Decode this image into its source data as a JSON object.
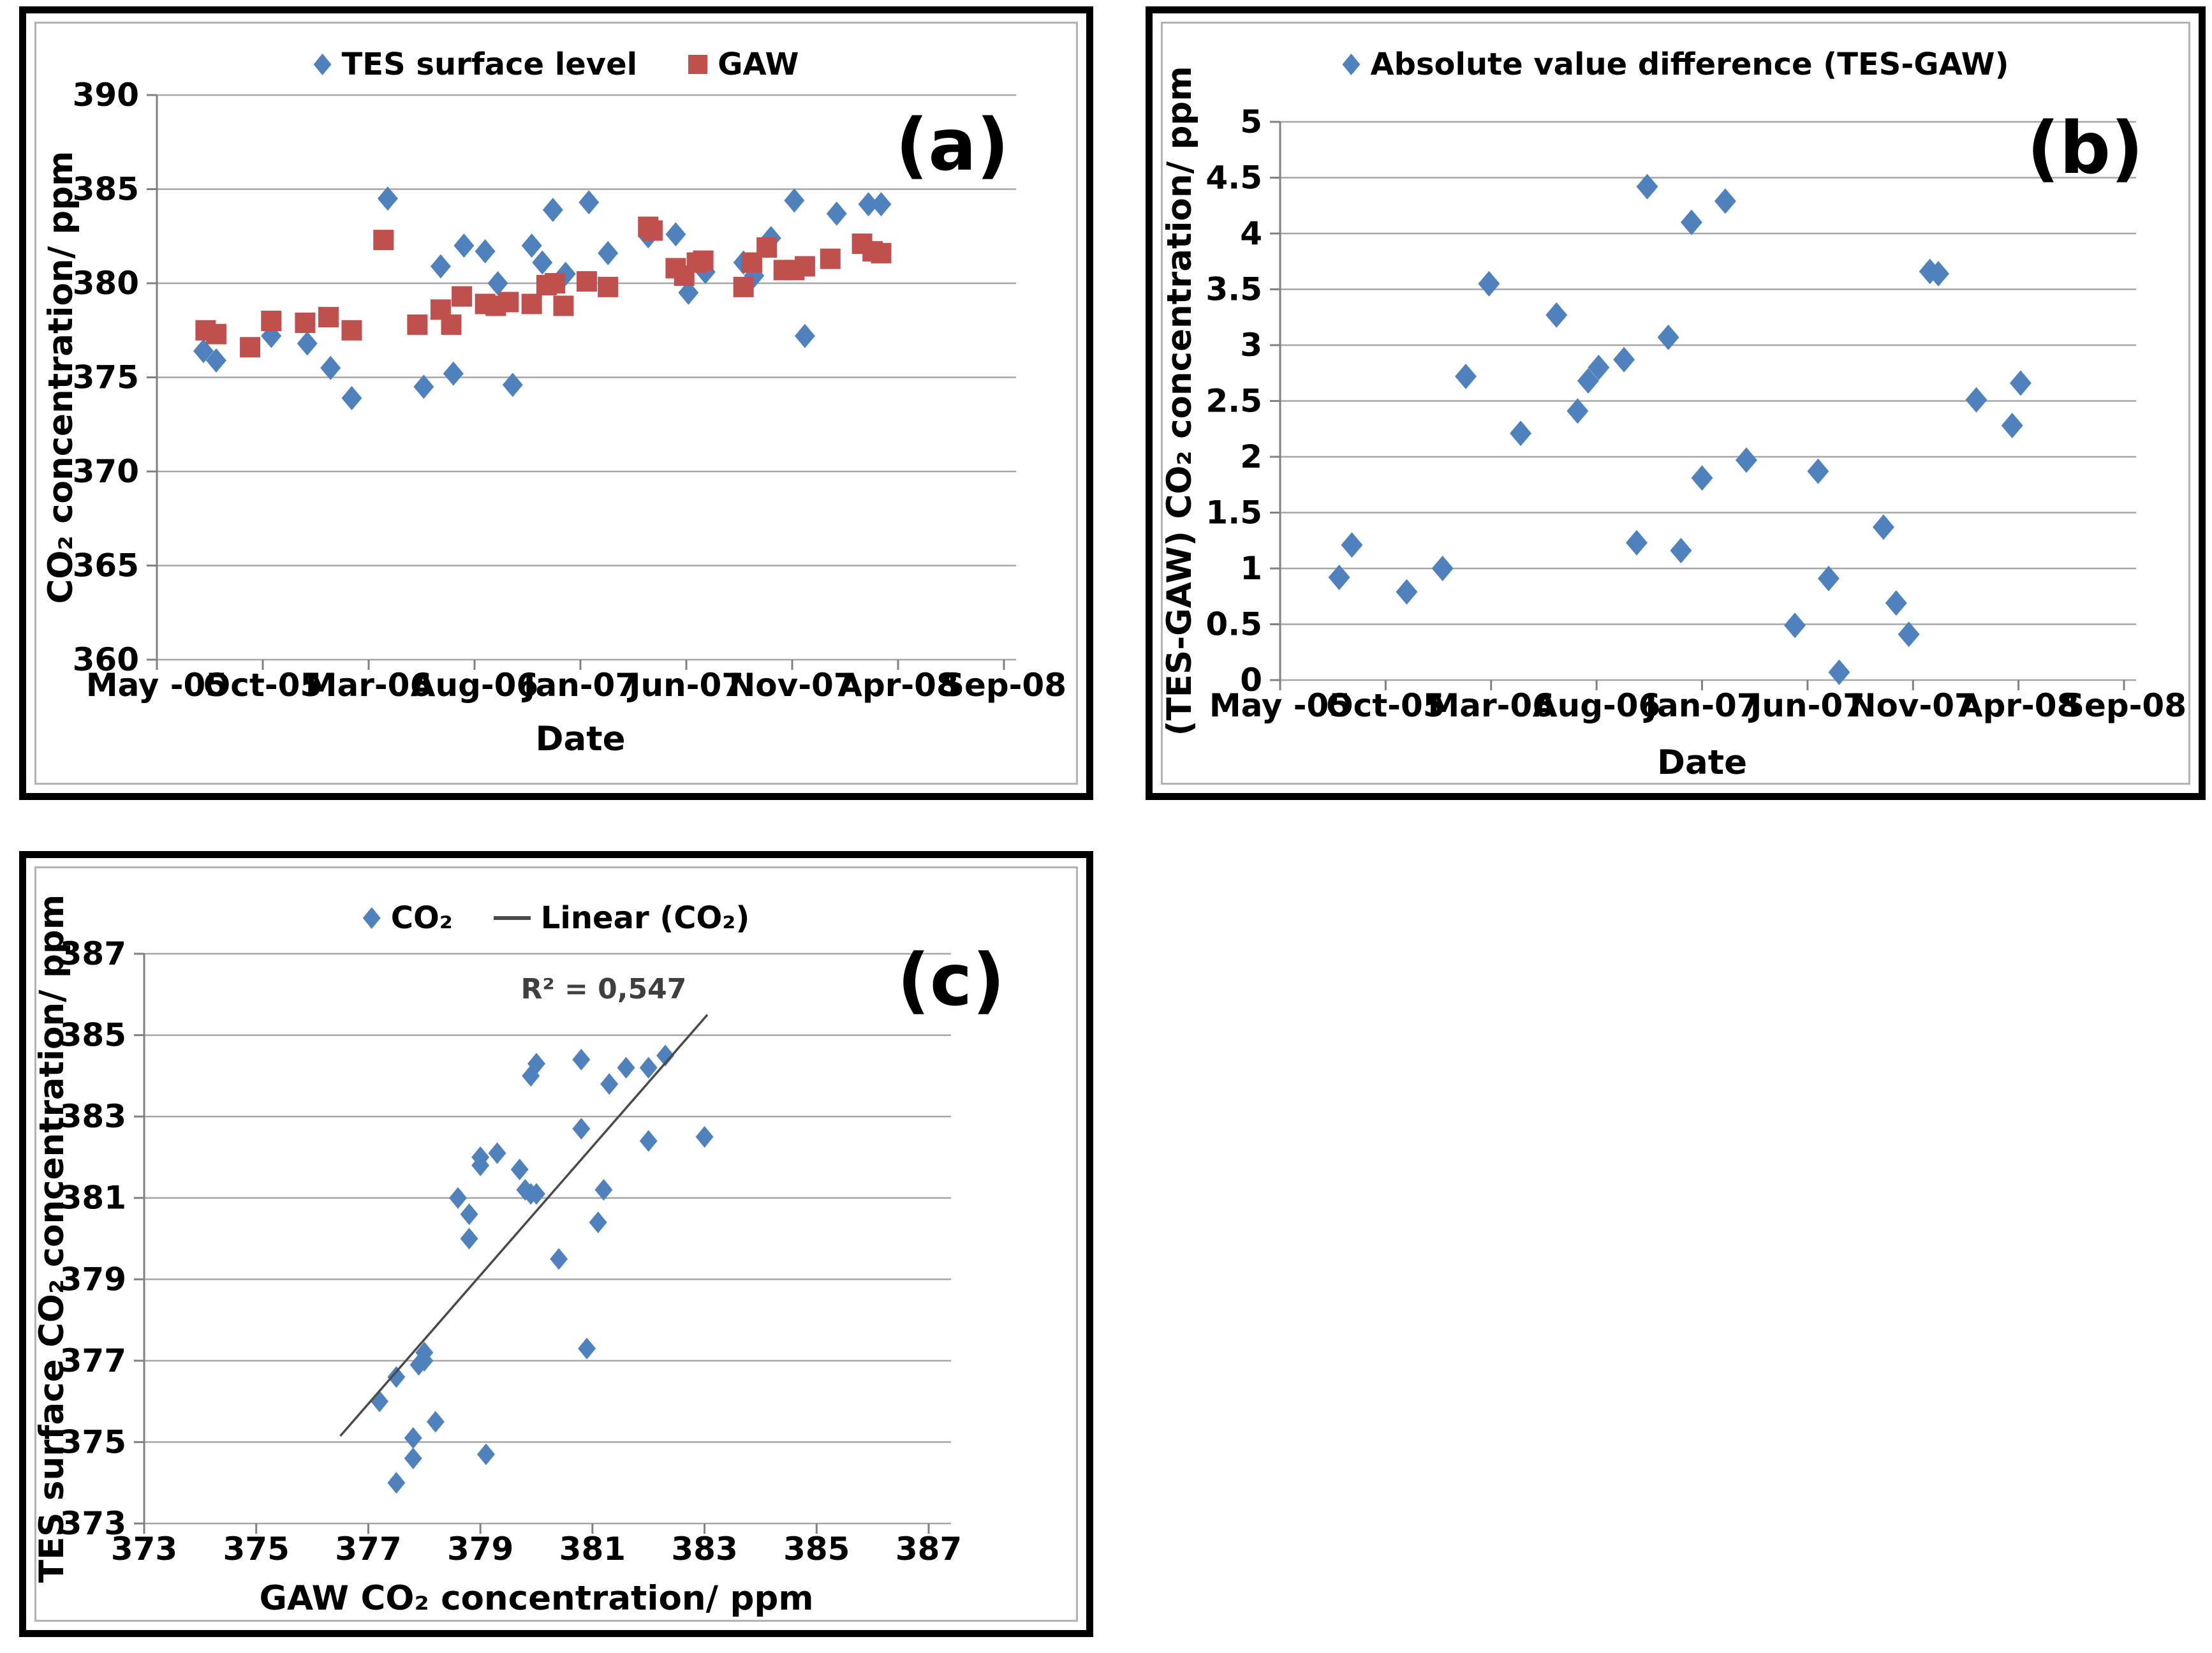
{
  "figure": {
    "background": "#ffffff",
    "accent_blue": "#4f81bd",
    "accent_red": "#c0504d",
    "gridline_color": "#a6a6a6",
    "axis_color": "#808080"
  },
  "chart_data": [
    {
      "id": "a",
      "type": "scatter",
      "panel_label": "(a)",
      "xlabel": "Date",
      "ylabel": "CO₂ concentration/ ppm",
      "x_unit": "months since May-05",
      "xlim": [
        0,
        40
      ],
      "ylim": [
        360,
        390
      ],
      "grid": "horizontal",
      "legend_position": "top-center",
      "xticks": {
        "values": [
          0,
          5,
          10,
          15,
          20,
          25,
          30,
          35,
          40
        ],
        "labels": [
          "May -05",
          "Oct-05",
          "Mar-06",
          "Aug-06",
          "Jan-07",
          "Jun-07",
          "Nov-07",
          "Apr-08",
          "Sep-08"
        ]
      },
      "yticks": {
        "values": [
          360,
          365,
          370,
          375,
          380,
          385,
          390
        ],
        "labels": [
          "360",
          "365",
          "370",
          "375",
          "380",
          "385",
          "390"
        ]
      },
      "series": [
        {
          "name": "TES surface level",
          "marker": "diamond",
          "color": "#4f81bd",
          "points": [
            [
              2.2,
              376.4
            ],
            [
              2.8,
              375.9
            ],
            [
              5.4,
              377.2
            ],
            [
              7.1,
              376.8
            ],
            [
              8.2,
              375.5
            ],
            [
              9.2,
              373.9
            ],
            [
              10.9,
              384.5
            ],
            [
              12.6,
              374.5
            ],
            [
              13.4,
              380.9
            ],
            [
              14.0,
              375.2
            ],
            [
              14.5,
              382.0
            ],
            [
              15.5,
              381.7
            ],
            [
              16.1,
              380.0
            ],
            [
              16.8,
              374.6
            ],
            [
              17.7,
              382.0
            ],
            [
              18.2,
              381.1
            ],
            [
              18.7,
              383.9
            ],
            [
              19.3,
              380.5
            ],
            [
              20.4,
              384.3
            ],
            [
              21.3,
              381.6
            ],
            [
              23.2,
              382.5
            ],
            [
              24.5,
              382.6
            ],
            [
              25.1,
              379.5
            ],
            [
              25.9,
              380.6
            ],
            [
              27.7,
              381.1
            ],
            [
              28.2,
              380.4
            ],
            [
              29.0,
              382.4
            ],
            [
              30.1,
              384.4
            ],
            [
              30.6,
              377.2
            ],
            [
              32.1,
              383.7
            ],
            [
              33.6,
              384.2
            ],
            [
              34.2,
              384.2
            ]
          ]
        },
        {
          "name": "GAW",
          "marker": "square",
          "color": "#c0504d",
          "points": [
            [
              2.3,
              377.5
            ],
            [
              2.8,
              377.3
            ],
            [
              4.4,
              376.6
            ],
            [
              5.4,
              378.0
            ],
            [
              7.0,
              377.9
            ],
            [
              8.1,
              378.2
            ],
            [
              9.2,
              377.5
            ],
            [
              10.7,
              382.3
            ],
            [
              12.3,
              377.8
            ],
            [
              13.4,
              378.6
            ],
            [
              13.9,
              377.8
            ],
            [
              14.4,
              379.3
            ],
            [
              15.5,
              378.9
            ],
            [
              16.0,
              378.8
            ],
            [
              16.6,
              379.0
            ],
            [
              17.7,
              378.9
            ],
            [
              18.4,
              379.9
            ],
            [
              18.8,
              380.0
            ],
            [
              19.2,
              378.8
            ],
            [
              20.3,
              380.1
            ],
            [
              21.3,
              379.8
            ],
            [
              23.2,
              383.0
            ],
            [
              23.4,
              382.8
            ],
            [
              24.5,
              380.8
            ],
            [
              24.9,
              380.4
            ],
            [
              25.5,
              381.1
            ],
            [
              25.8,
              381.2
            ],
            [
              27.7,
              379.8
            ],
            [
              28.1,
              381.1
            ],
            [
              28.8,
              381.9
            ],
            [
              29.6,
              380.7
            ],
            [
              30.1,
              380.7
            ],
            [
              30.6,
              380.9
            ],
            [
              31.8,
              381.3
            ],
            [
              33.3,
              382.1
            ],
            [
              33.8,
              381.7
            ],
            [
              34.2,
              381.6
            ]
          ]
        }
      ]
    },
    {
      "id": "b",
      "type": "scatter",
      "panel_label": "(b)",
      "xlabel": "Date",
      "ylabel": "(TES-GAW) CO₂ concentration/ ppm",
      "x_unit": "months since May-05",
      "xlim": [
        0,
        40
      ],
      "ylim": [
        0,
        5
      ],
      "grid": "horizontal",
      "legend_position": "top-center",
      "xticks": {
        "values": [
          0,
          5,
          10,
          15,
          20,
          25,
          30,
          35,
          40
        ],
        "labels": [
          "May -05",
          "Oct-05",
          "Mar-06",
          "Aug-06",
          "Jan-07",
          "Jun-07",
          "Nov-07",
          "Apr-08",
          "Sep-08"
        ]
      },
      "yticks": {
        "values": [
          0,
          0.5,
          1,
          1.5,
          2,
          2.5,
          3,
          3.5,
          4,
          4.5,
          5
        ],
        "labels": [
          "0",
          "0.5",
          "1",
          "1.5",
          "2",
          "2.5",
          "3",
          "3.5",
          "4",
          "4.5",
          "5"
        ]
      },
      "series": [
        {
          "name": "Absolute value difference (TES-GAW)",
          "marker": "diamond",
          "color": "#4f81bd",
          "points": [
            [
              2.8,
              0.92
            ],
            [
              3.4,
              1.21
            ],
            [
              6.0,
              0.79
            ],
            [
              7.7,
              1.0
            ],
            [
              8.8,
              2.72
            ],
            [
              9.9,
              3.55
            ],
            [
              11.4,
              2.21
            ],
            [
              13.1,
              3.27
            ],
            [
              14.1,
              2.41
            ],
            [
              14.6,
              2.68
            ],
            [
              15.1,
              2.8
            ],
            [
              16.3,
              2.87
            ],
            [
              16.9,
              1.23
            ],
            [
              17.4,
              4.42
            ],
            [
              18.4,
              3.07
            ],
            [
              19.0,
              1.16
            ],
            [
              19.5,
              4.1
            ],
            [
              20.0,
              1.81
            ],
            [
              21.1,
              4.29
            ],
            [
              22.1,
              1.97
            ],
            [
              24.4,
              0.49
            ],
            [
              25.5,
              1.87
            ],
            [
              26.0,
              0.91
            ],
            [
              26.5,
              0.07
            ],
            [
              28.6,
              1.37
            ],
            [
              29.2,
              0.69
            ],
            [
              29.8,
              0.41
            ],
            [
              30.8,
              3.66
            ],
            [
              31.2,
              3.64
            ],
            [
              33.0,
              2.51
            ],
            [
              34.7,
              2.28
            ],
            [
              35.1,
              2.66
            ]
          ]
        }
      ]
    },
    {
      "id": "c",
      "type": "scatter",
      "panel_label": "(c)",
      "xlabel": "GAW CO₂ concentration/ ppm",
      "ylabel": "TES surface CO₂ concentration/ ppm",
      "xlim": [
        373,
        387
      ],
      "ylim": [
        373,
        387
      ],
      "grid": "horizontal",
      "legend_position": "top-center",
      "annotation": {
        "text": "R² = 0,547",
        "x": 381.2,
        "y": 385.9
      },
      "xticks": {
        "values": [
          373,
          375,
          377,
          379,
          381,
          383,
          385,
          387
        ],
        "labels": [
          "373",
          "375",
          "377",
          "379",
          "381",
          "383",
          "385",
          "387"
        ]
      },
      "yticks": {
        "values": [
          373,
          375,
          377,
          379,
          381,
          383,
          385,
          387
        ],
        "labels": [
          "373",
          "375",
          "377",
          "379",
          "381",
          "383",
          "385",
          "387"
        ]
      },
      "series": [
        {
          "name": "CO₂",
          "marker": "diamond",
          "color": "#4f81bd",
          "points": [
            [
              377.2,
              376.0
            ],
            [
              377.5,
              376.6
            ],
            [
              377.5,
              374.0
            ],
            [
              377.8,
              375.1
            ],
            [
              377.8,
              374.6
            ],
            [
              377.9,
              376.9
            ],
            [
              378.0,
              377.0
            ],
            [
              378.0,
              377.2
            ],
            [
              378.2,
              375.5
            ],
            [
              378.6,
              381.0
            ],
            [
              378.8,
              380.6
            ],
            [
              378.8,
              380.0
            ],
            [
              379.0,
              382.0
            ],
            [
              379.0,
              381.8
            ],
            [
              379.1,
              374.7
            ],
            [
              379.3,
              382.1
            ],
            [
              379.7,
              381.7
            ],
            [
              379.8,
              381.2
            ],
            [
              379.9,
              381.1
            ],
            [
              380.0,
              381.1
            ],
            [
              379.9,
              384.0
            ],
            [
              380.0,
              384.3
            ],
            [
              380.4,
              379.5
            ],
            [
              380.8,
              384.4
            ],
            [
              380.8,
              382.7
            ],
            [
              380.9,
              377.3
            ],
            [
              381.1,
              380.4
            ],
            [
              381.2,
              381.2
            ],
            [
              381.3,
              383.8
            ],
            [
              381.6,
              384.2
            ],
            [
              382.0,
              384.2
            ],
            [
              382.0,
              382.4
            ],
            [
              382.3,
              384.5
            ],
            [
              383.0,
              382.5
            ]
          ]
        },
        {
          "name": "Linear (CO₂)",
          "marker": "line",
          "type": "line",
          "color": "#4a4a4a",
          "points": [
            [
              376.5,
              375.15
            ],
            [
              383.05,
              385.5
            ]
          ]
        }
      ]
    }
  ]
}
